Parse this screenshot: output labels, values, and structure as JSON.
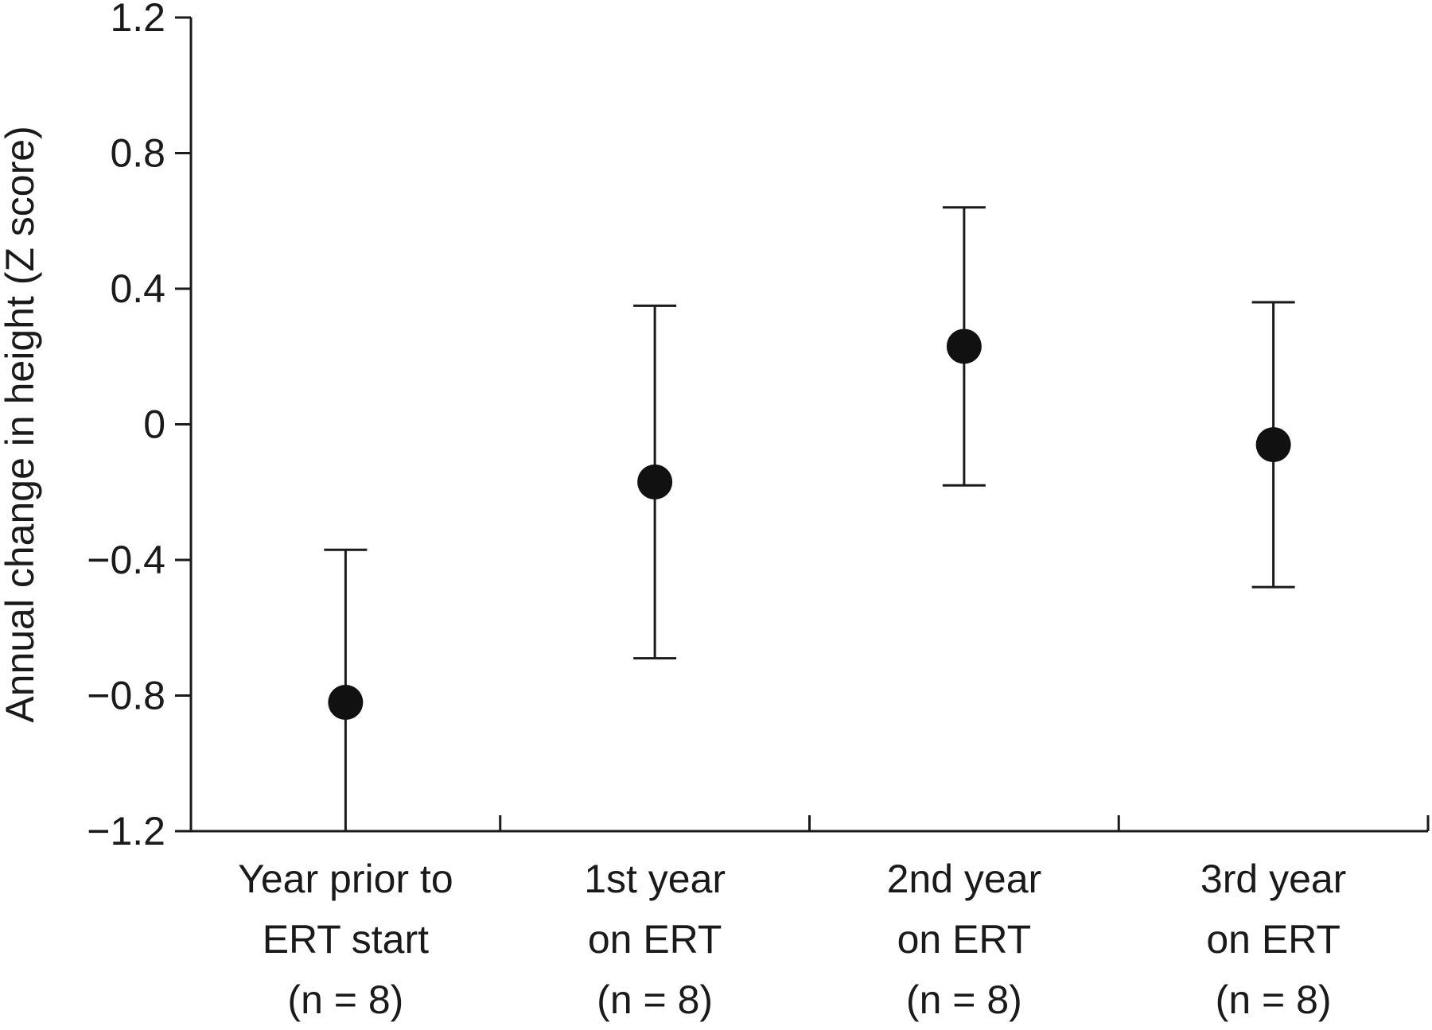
{
  "chart_data": {
    "type": "scatter",
    "ylabel": "Annual change in height (Z score)",
    "xlabel": "",
    "ylim": [
      -1.2,
      1.2
    ],
    "yticks": [
      1.2,
      0.8,
      0.4,
      0,
      -0.4,
      -0.8,
      -1.2
    ],
    "ytick_labels": [
      "1.2",
      "0.8",
      "0.4",
      "0",
      "−0.4",
      "−0.8",
      "−1.2"
    ],
    "categories": [
      [
        "Year prior to",
        "ERT start",
        "(n = 8)"
      ],
      [
        "1st year",
        "on ERT",
        "(n = 8)"
      ],
      [
        "2nd year",
        "on ERT",
        "(n = 8)"
      ],
      [
        "3rd year",
        "on ERT",
        "(n = 8)"
      ]
    ],
    "series": [
      {
        "values": [
          -0.82,
          -0.17,
          0.23,
          -0.06
        ],
        "err_low": [
          -1.2,
          -0.69,
          -0.18,
          -0.48
        ],
        "err_high": [
          -0.37,
          0.35,
          0.64,
          0.36
        ]
      }
    ],
    "grid": false,
    "colors": {
      "axis": "#1a1a1a",
      "marker": "#111111"
    }
  }
}
